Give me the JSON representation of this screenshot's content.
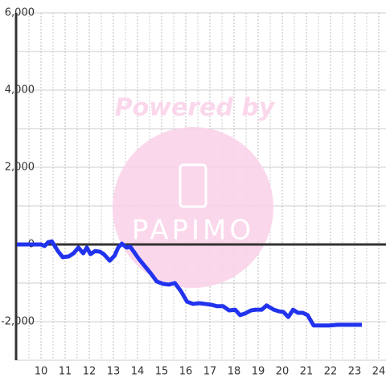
{
  "chart_data": {
    "type": "line",
    "annotations": [
      "Powered by",
      "PAPIMO"
    ],
    "x": [
      9,
      10,
      10.15,
      10.3,
      10.45,
      10.7,
      10.9,
      11.15,
      11.35,
      11.55,
      11.75,
      11.9,
      12.05,
      12.25,
      12.45,
      12.6,
      12.85,
      13.05,
      13.2,
      13.35,
      13.55,
      13.7,
      13.85,
      14.05,
      14.3,
      14.55,
      14.8,
      15.05,
      15.3,
      15.55,
      15.8,
      16.05,
      16.3,
      16.55,
      16.8,
      17.05,
      17.3,
      17.55,
      17.8,
      18.05,
      18.25,
      18.45,
      18.7,
      18.9,
      19.15,
      19.35,
      19.65,
      19.85,
      20.05,
      20.25,
      20.45,
      20.65,
      20.85,
      21.05,
      21.3,
      21.5,
      21.7,
      21.95,
      22.3,
      22.8,
      23.3
    ],
    "series": [
      {
        "color": "#2233ee",
        "values": [
          0,
          0,
          -40,
          60,
          80,
          -170,
          -330,
          -310,
          -230,
          -80,
          -230,
          -80,
          -250,
          -170,
          -190,
          -250,
          -420,
          -290,
          -80,
          20,
          -80,
          -60,
          -190,
          -370,
          -560,
          -750,
          -960,
          -1020,
          -1040,
          -1000,
          -1210,
          -1480,
          -1540,
          -1520,
          -1540,
          -1560,
          -1600,
          -1600,
          -1710,
          -1690,
          -1830,
          -1790,
          -1710,
          -1690,
          -1690,
          -1580,
          -1690,
          -1730,
          -1750,
          -1880,
          -1690,
          -1770,
          -1770,
          -1830,
          -2100,
          -2100,
          -2100,
          -2100,
          -2080,
          -2080,
          -2080
        ]
      }
    ],
    "xlim": [
      9,
      24.3
    ],
    "xticks": [
      10,
      11,
      12,
      13,
      14,
      15,
      16,
      17,
      18,
      19,
      20,
      21,
      22,
      23,
      24
    ],
    "x_minor_ticks": [
      9.5,
      10.5,
      11.5,
      12.5,
      13.5,
      14.5,
      15.5,
      16.5,
      17.5,
      18.5,
      19.5,
      20.5,
      21.5,
      22.5,
      23.5
    ],
    "ylim": [
      -3000,
      6000
    ],
    "yticks": [
      {
        "value": 6000,
        "label": "6,000"
      },
      {
        "value": 4000,
        "label": "4,000"
      },
      {
        "value": 2000,
        "label": "2,000"
      },
      0,
      {
        "value": -2000,
        "label": "-2,000"
      }
    ],
    "y_minor_ticks": [
      5000,
      3000,
      1000,
      -1000,
      -3000
    ],
    "grid": true
  }
}
